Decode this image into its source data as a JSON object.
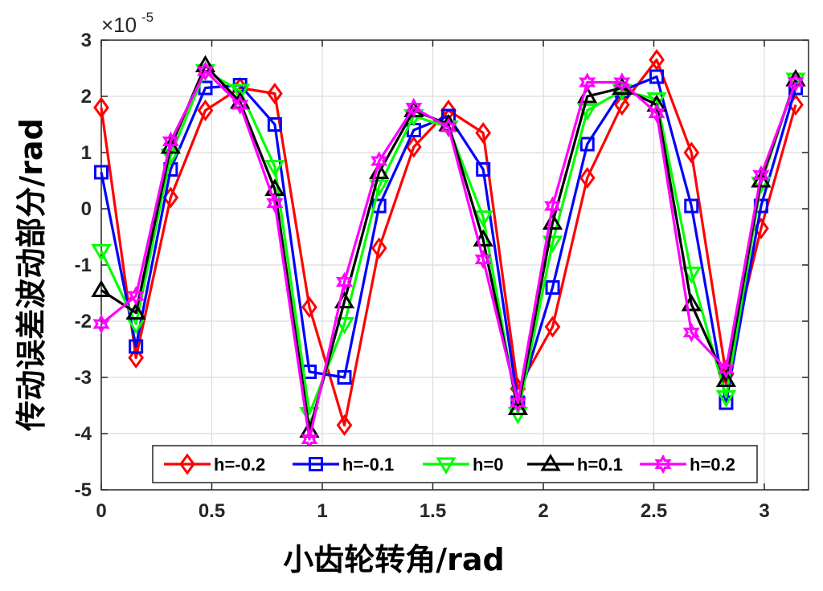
{
  "chart_data": {
    "type": "line",
    "xlabel": "小齿轮转角/rad",
    "ylabel": "传动误差波动部分/rad",
    "y_exponent_prefix": "×10",
    "y_exponent": "-5",
    "xlim": [
      0,
      3.2
    ],
    "ylim": [
      -5,
      3
    ],
    "x_ticks": [
      0,
      0.5,
      1,
      1.5,
      2,
      2.5,
      3
    ],
    "x_tick_labels": [
      "0",
      "0.5",
      "1",
      "1.5",
      "2",
      "2.5",
      "3"
    ],
    "y_ticks": [
      -5,
      -4,
      -3,
      -2,
      -1,
      0,
      1,
      2,
      3
    ],
    "y_tick_labels": [
      "-5",
      "-4",
      "-3",
      "-2",
      "-1",
      "0",
      "1",
      "2",
      "3"
    ],
    "grid": true,
    "legend_position": "bottom, single row",
    "x": [
      0,
      0.157,
      0.314,
      0.471,
      0.628,
      0.785,
      0.942,
      1.1,
      1.257,
      1.414,
      1.571,
      1.728,
      1.885,
      2.042,
      2.199,
      2.356,
      2.513,
      2.67,
      2.827,
      2.985,
      3.142
    ],
    "series": [
      {
        "name": "h=-0.2",
        "color": "#ff0000",
        "marker": "diamond",
        "values": [
          1.8,
          -2.65,
          0.2,
          1.75,
          2.15,
          2.05,
          -1.75,
          -3.85,
          -0.7,
          1.1,
          1.75,
          1.35,
          -3.2,
          -2.1,
          0.55,
          1.85,
          2.65,
          1.0,
          -2.95,
          -0.35,
          1.85
        ]
      },
      {
        "name": "h=-0.1",
        "color": "#0000ff",
        "marker": "square",
        "values": [
          0.65,
          -2.45,
          0.7,
          2.15,
          2.2,
          1.5,
          -2.9,
          -3.0,
          0.05,
          1.4,
          1.65,
          0.7,
          -3.45,
          -1.4,
          1.15,
          2.1,
          2.35,
          0.05,
          -3.45,
          0.05,
          2.15
        ]
      },
      {
        "name": "h=0",
        "color": "#00ff00",
        "marker": "triangle-down",
        "values": [
          -0.75,
          -2.05,
          0.95,
          2.45,
          2.1,
          0.75,
          -3.65,
          -2.05,
          0.4,
          1.65,
          1.45,
          -0.15,
          -3.65,
          -0.6,
          1.75,
          2.1,
          1.95,
          -1.15,
          -3.35,
          0.45,
          2.3
        ]
      },
      {
        "name": "h=0.1",
        "color": "#000000",
        "marker": "triangle-up",
        "values": [
          -1.45,
          -1.85,
          1.1,
          2.55,
          1.9,
          0.35,
          -3.95,
          -1.65,
          0.65,
          1.75,
          1.5,
          -0.55,
          -3.55,
          -0.25,
          2.0,
          2.15,
          1.85,
          -1.7,
          -3.05,
          0.5,
          2.3
        ]
      },
      {
        "name": "h=0.2",
        "color": "#ff00ff",
        "marker": "hexagram",
        "values": [
          -2.05,
          -1.55,
          1.2,
          2.45,
          1.85,
          0.1,
          -4.1,
          -1.3,
          0.85,
          1.8,
          1.45,
          -0.9,
          -3.45,
          0.05,
          2.25,
          2.25,
          1.7,
          -2.2,
          -2.85,
          0.6,
          2.25
        ]
      }
    ]
  }
}
